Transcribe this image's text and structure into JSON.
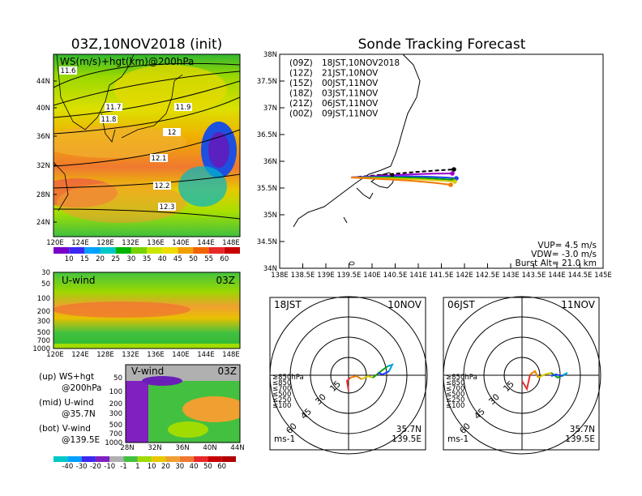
{
  "left_title": "03Z,10NOV2018 (init)",
  "right_title": "Sonde Tracking Forecast",
  "map_panel": {
    "label": "WS(m/s)+hgt(km)@200hPa",
    "lat_ticks": [
      "44N",
      "40N",
      "36N",
      "32N",
      "28N",
      "24N"
    ],
    "lon_ticks": [
      "120E",
      "124E",
      "128E",
      "132E",
      "136E",
      "140E",
      "144E",
      "148E"
    ],
    "contour_labels": [
      "11.6",
      "11.7",
      "11.8",
      "11.9",
      "12",
      "12.1",
      "12.2",
      "12.3"
    ],
    "colorbar_ticks": [
      "10",
      "15",
      "20",
      "25",
      "30",
      "35",
      "40",
      "45",
      "50",
      "55",
      "60"
    ]
  },
  "uwind_panel": {
    "label": "U-wind",
    "time": "03Z",
    "p_ticks": [
      "30",
      "50",
      "100",
      "200",
      "300",
      "500",
      "700",
      "1000"
    ],
    "lon_ticks": [
      "120E",
      "124E",
      "128E",
      "132E",
      "136E",
      "140E",
      "144E",
      "148E"
    ]
  },
  "vwind_panel": {
    "label": "V-wind",
    "time": "03Z",
    "p_ticks": [
      "50",
      "100",
      "200",
      "300",
      "500",
      "700",
      "1000"
    ],
    "lat_ticks": [
      "28N",
      "32N",
      "36N",
      "40N",
      "44N"
    ]
  },
  "legend_text": {
    "up": [
      "(up) WS+hgt",
      "@200hPa"
    ],
    "mid": [
      "(mid) U-wind",
      "@35.7N"
    ],
    "bot": [
      "(bot) V-wind",
      "@139.5E"
    ]
  },
  "bottom_colorbar_ticks": [
    "-40",
    "-30",
    "-20",
    "-10",
    "-1",
    "1",
    "10",
    "20",
    "30",
    "40",
    "50",
    "60"
  ],
  "track_panel": {
    "lat_ticks": [
      "38N",
      "37.5N",
      "37N",
      "36.5N",
      "36N",
      "35.5N",
      "35N",
      "34.5N",
      "34N"
    ],
    "lon_ticks": [
      "138E",
      "138.5E",
      "139E",
      "139.5E",
      "140E",
      "140.5E",
      "141E",
      "141.5E",
      "142E",
      "142.5E",
      "143E",
      "143.5E",
      "144E",
      "144.5E",
      "145E"
    ],
    "launches": [
      {
        "z": "(09Z)",
        "text": "18JST,10NOV2018",
        "color": "#000000"
      },
      {
        "z": "(12Z)",
        "text": "21JST,10NOV",
        "color": "#9a00c8"
      },
      {
        "z": "(15Z)",
        "text": "00JST,11NOV",
        "color": "#1e3cff"
      },
      {
        "z": "(18Z)",
        "text": "03JST,11NOV",
        "color": "#00a000"
      },
      {
        "z": "(21Z)",
        "text": "06JST,11NOV",
        "color": "#d8c800"
      },
      {
        "z": "(00Z)",
        "text": "09JST,11NOV",
        "color": "#f07800"
      }
    ],
    "params": [
      "VUP= 4.5 m/s",
      "VDW= -3.0 m/s",
      "Burst Alt= 21.0 km"
    ]
  },
  "hodo_left": {
    "time": "18JST",
    "date": "10NOV",
    "lat": "35.7N",
    "lon": "139.5E",
    "unit": "ms-1",
    "ring_labels": [
      "15",
      "30",
      "45",
      "60"
    ],
    "levels": [
      "≥850hPa",
      "≤850",
      "≤700",
      "≤500",
      "≤250",
      "≤100"
    ]
  },
  "hodo_right": {
    "time": "06JST",
    "date": "11NOV",
    "lat": "35.7N",
    "lon": "139.5E",
    "unit": "ms-1",
    "ring_labels": [
      "15",
      "30",
      "45",
      "60"
    ],
    "levels": [
      "≥850hPa",
      "≤850",
      "≤700",
      "≤500",
      "≤250",
      "≤100"
    ]
  },
  "colors": {
    "level_colors": [
      "#e83030",
      "#f08000",
      "#d8c800",
      "#00a000",
      "#00a0e0",
      "#1e3cff"
    ]
  }
}
